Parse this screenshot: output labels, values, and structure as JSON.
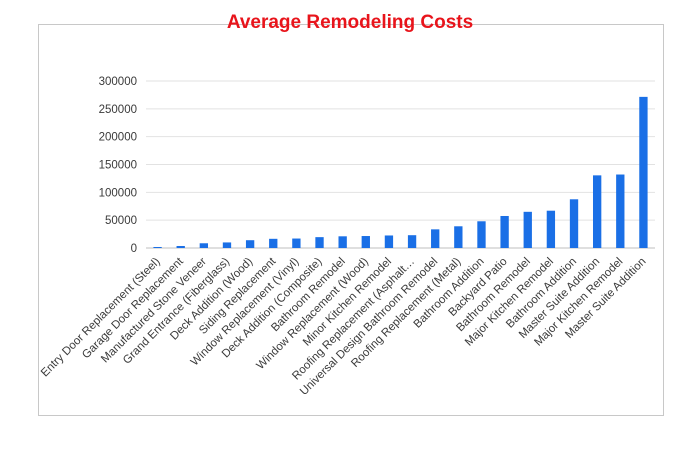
{
  "chart_data": {
    "type": "bar",
    "title": "Average Remodeling Costs",
    "xlabel": "",
    "ylabel": "",
    "ylim": [
      0,
      300000
    ],
    "yticks": [
      "0",
      "50000",
      "100000",
      "150000",
      "200000",
      "250000",
      "300000"
    ],
    "grid": true,
    "bar_color": "#1a6fe6",
    "title_color": "#e8141b",
    "categories": [
      "Entry Door Replacement (Steel)",
      "Garage Door Replacement",
      "Manufactured Stone Veneer",
      "Grand Entrance (Fiberglass)",
      "Deck Addition (Wood)",
      "Siding Replacement",
      "Window Replacement (Vinyl)",
      "Deck Addition (Composite)",
      "Bathroom Remodel",
      "Window Replacement (Wood)",
      "Minor Kitchen Remodel",
      "Roofing Replacement (Asphalt…",
      "Universal Design Bathroom Remodel",
      "Roofing Replacement (Metal)",
      "Bathroom Addition",
      "Backyard Patio",
      "Bathroom Remodel",
      "Major Kitchen Remodel",
      "Bathroom Addition",
      "Master Suite Addition",
      "Major Kitchen Remodel",
      "Master Suite Addition"
    ],
    "values": [
      1800,
      3600,
      8500,
      10000,
      14000,
      16500,
      17000,
      19500,
      21000,
      21500,
      22500,
      23000,
      33500,
      39000,
      48000,
      57500,
      65000,
      67000,
      87500,
      130500,
      132000,
      271500
    ]
  }
}
